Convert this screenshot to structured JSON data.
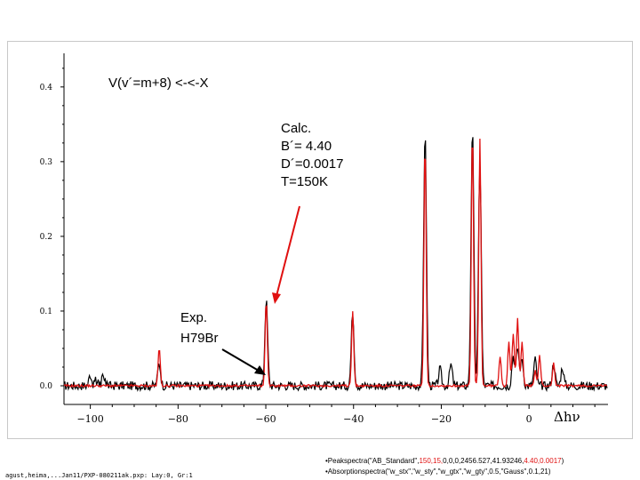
{
  "chart_data": {
    "type": "line",
    "series": [
      {
        "color": "#000000",
        "peaks": [
          [
            -100,
            0.015
          ],
          [
            -84.3,
            0.03
          ],
          [
            -59.9,
            0.115
          ],
          [
            -40.2,
            0.1
          ],
          [
            -23.7,
            0.34
          ],
          [
            -20.3,
            0.022
          ],
          [
            -17.8,
            0.028
          ],
          [
            -12.9,
            0.345
          ],
          [
            -11.2,
            0.3
          ],
          [
            -3.6,
            0.04
          ],
          [
            -2.6,
            0.05
          ],
          [
            -1.6,
            0.035
          ],
          [
            1.4,
            0.035
          ],
          [
            5.6,
            0.03
          ],
          [
            7.6,
            0.025
          ]
        ]
      },
      {
        "color": "#e01010",
        "peaks": [
          [
            -84.3,
            0.05
          ],
          [
            -59.9,
            0.115
          ],
          [
            -40.2,
            0.1
          ],
          [
            -23.7,
            0.33
          ],
          [
            -12.9,
            0.345
          ],
          [
            -11.2,
            0.33
          ],
          [
            -6.6,
            0.04
          ],
          [
            -4.6,
            0.06
          ],
          [
            -3.6,
            0.07
          ],
          [
            -2.6,
            0.09
          ],
          [
            -1.6,
            0.06
          ],
          [
            1.4,
            0.02
          ],
          [
            2.4,
            0.04
          ],
          [
            5.6,
            0.03
          ]
        ]
      }
    ],
    "x_ticks": [
      -100,
      -80,
      -60,
      -40,
      -20,
      0
    ],
    "y_ticks": [
      0.0,
      0.1,
      0.2,
      0.3,
      0.4
    ],
    "y_tick_labels": [
      "0.0",
      "0.1",
      "0.2",
      "0.3",
      "0.4"
    ],
    "xlim": [
      -106,
      18
    ],
    "ylim": [
      -0.025,
      0.445
    ],
    "annotations": {
      "title": "V(v´=m+8) <-<-X",
      "calc_lines": [
        "Calc.",
        "B´= 4.40",
        "D´=0.0017",
        "T=150K"
      ],
      "exp_lines": [
        "Exp.",
        "H79Br"
      ],
      "axis_symbol": "Δhν"
    }
  },
  "footer": {
    "left": "agust,heima,...Jan11/PXP-080211ak.pxp: Lay:0, Gr:1",
    "right_line1_pre": "•Peakspectra(\"AB_Standard\",",
    "right_line1_red1": "150,15,",
    "right_line1_mid": "0,0,0,2456.527,41.93246,",
    "right_line1_red2": "4.40,0.0017",
    "right_line1_post": ")",
    "right_line2": "•Absorptionspectra(\"w_stx\",\"w_sty\",\"w_gtx\",\"w_gty\",0.5,\"Gauss\",0.1,21)"
  },
  "colors": {
    "exp": "#000000",
    "calc": "#e01010",
    "arrow_calc": "#e01010",
    "arrow_exp": "#000000"
  }
}
